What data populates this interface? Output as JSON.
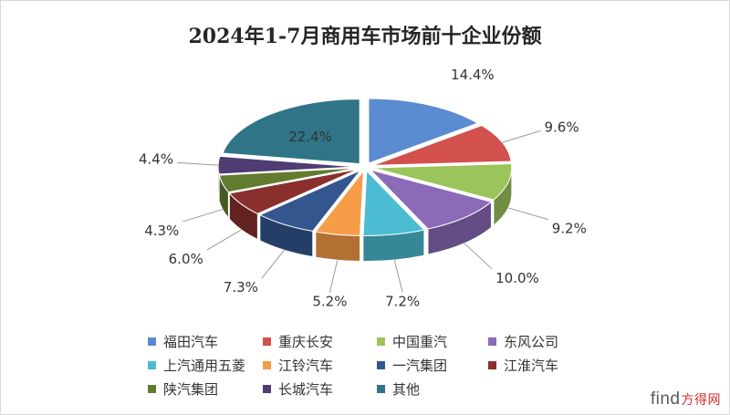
{
  "chart_data": {
    "type": "pie",
    "title": "2024年1-7月商用车市场前十企业份额",
    "categories": [
      "福田汽车",
      "重庆长安",
      "中国重汽",
      "东风公司",
      "上汽通用五菱",
      "江铃汽车",
      "一汽集团",
      "江淮汽车",
      "陕汽集团",
      "长城汽车",
      "其他"
    ],
    "values": [
      14.4,
      9.6,
      9.2,
      10.0,
      7.2,
      5.2,
      7.3,
      6.0,
      4.3,
      4.4,
      22.4
    ],
    "value_labels": [
      "14.4%",
      "9.6%",
      "9.2%",
      "10.0%",
      "7.2%",
      "5.2%",
      "7.3%",
      "6.0%",
      "4.3%",
      "4.4%",
      "22.4%"
    ],
    "colors": [
      "#5b8bd0",
      "#d2504d",
      "#9bc45a",
      "#8b6ab8",
      "#4bbcd2",
      "#f79c47",
      "#34568f",
      "#8a2f2e",
      "#637b2f",
      "#4e3c73",
      "#2f7487"
    ],
    "legend_position": "bottom",
    "style": "3d-exploded"
  },
  "watermark": {
    "text": "find",
    "suffix": "方得网"
  }
}
